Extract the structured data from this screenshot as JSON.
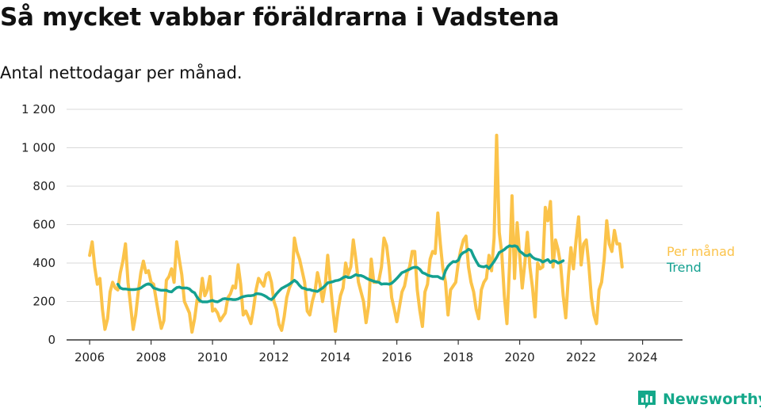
{
  "header": {
    "title": "Så mycket vabbar föräldrarna i Vadstena",
    "subtitle": "Antal nettodagar per månad."
  },
  "branding": {
    "name": "Newsworthy",
    "logo_icon": "bar-chart-speech-bubble-icon",
    "color": "#14a88a"
  },
  "chart_data": {
    "type": "line",
    "title": "Så mycket vabbar föräldrarna i Vadstena",
    "subtitle": "Antal nettodagar per månad.",
    "xlabel": "",
    "ylabel": "",
    "xlim": [
      2005.25,
      2025.3
    ],
    "ylim": [
      0,
      1200
    ],
    "x_ticks": [
      2006,
      2008,
      2010,
      2012,
      2014,
      2016,
      2018,
      2020,
      2022,
      2024
    ],
    "y_ticks": [
      0,
      200,
      400,
      600,
      800,
      1000,
      1200
    ],
    "y_tick_labels": [
      "0",
      "200",
      "400",
      "600",
      "800",
      "1 000",
      "1 200"
    ],
    "x_tick_labels": [
      "2006",
      "2008",
      "2010",
      "2012",
      "2014",
      "2016",
      "2018",
      "2020",
      "2022",
      "2024"
    ],
    "grid": "horizontal",
    "legend": "direct labels at right end of lines",
    "colors": {
      "per_month": "#fbc34a",
      "trend": "#14a090",
      "grid": "#d9d9d9",
      "axis": "#333333"
    },
    "series": [
      {
        "name": "Per månad",
        "x_start": 2006.0,
        "step_years": 0.0833333,
        "values": [
          440,
          510,
          380,
          290,
          320,
          160,
          55,
          110,
          250,
          300,
          270,
          260,
          350,
          410,
          500,
          300,
          180,
          55,
          130,
          250,
          350,
          410,
          350,
          360,
          300,
          290,
          210,
          130,
          60,
          100,
          310,
          330,
          370,
          300,
          510,
          420,
          340,
          200,
          170,
          140,
          40,
          110,
          210,
          200,
          320,
          230,
          260,
          330,
          150,
          160,
          140,
          100,
          120,
          140,
          220,
          240,
          280,
          270,
          390,
          290,
          130,
          150,
          120,
          85,
          160,
          260,
          320,
          300,
          280,
          340,
          350,
          300,
          200,
          160,
          80,
          50,
          120,
          220,
          270,
          300,
          530,
          460,
          420,
          360,
          300,
          150,
          130,
          200,
          250,
          350,
          290,
          200,
          280,
          440,
          300,
          160,
          45,
          150,
          230,
          270,
          400,
          340,
          380,
          520,
          420,
          300,
          250,
          200,
          90,
          180,
          420,
          300,
          300,
          310,
          380,
          530,
          490,
          380,
          220,
          160,
          95,
          170,
          250,
          280,
          350,
          380,
          460,
          460,
          260,
          150,
          70,
          250,
          290,
          420,
          460,
          450,
          660,
          500,
          370,
          300,
          130,
          260,
          280,
          300,
          400,
          470,
          520,
          540,
          380,
          300,
          250,
          160,
          110,
          260,
          300,
          320,
          440,
          360,
          530,
          1065,
          560,
          450,
          230,
          85,
          380,
          750,
          320,
          610,
          440,
          270,
          400,
          560,
          380,
          270,
          120,
          400,
          370,
          380,
          690,
          620,
          720,
          380,
          520,
          470,
          390,
          230,
          115,
          330,
          480,
          370,
          520,
          640,
          390,
          500,
          520,
          390,
          220,
          130,
          85,
          260,
          300,
          420,
          620,
          500,
          460,
          570,
          500,
          500,
          380
        ]
      },
      {
        "name": "Trend",
        "x_start": 2006.917,
        "step_years": 0.0833333,
        "values": [
          290,
          270,
          265,
          265,
          263,
          262,
          262,
          263,
          265,
          270,
          280,
          288,
          292,
          286,
          270,
          266,
          261,
          258,
          258,
          258,
          252,
          250,
          262,
          272,
          275,
          270,
          270,
          270,
          265,
          252,
          245,
          222,
          205,
          198,
          198,
          198,
          202,
          205,
          200,
          198,
          205,
          213,
          215,
          212,
          212,
          210,
          210,
          213,
          220,
          225,
          228,
          230,
          230,
          232,
          240,
          240,
          238,
          232,
          225,
          215,
          210,
          222,
          240,
          255,
          268,
          275,
          282,
          290,
          300,
          310,
          300,
          283,
          270,
          268,
          262,
          262,
          257,
          255,
          252,
          262,
          270,
          283,
          297,
          300,
          303,
          308,
          310,
          315,
          324,
          330,
          325,
          325,
          332,
          340,
          335,
          335,
          330,
          322,
          315,
          310,
          305,
          302,
          300,
          290,
          292,
          292,
          290,
          295,
          307,
          320,
          335,
          350,
          355,
          362,
          368,
          375,
          378,
          377,
          367,
          350,
          345,
          337,
          333,
          330,
          330,
          330,
          322,
          318,
          360,
          383,
          397,
          408,
          406,
          415,
          443,
          455,
          460,
          472,
          465,
          435,
          410,
          387,
          382,
          380,
          385,
          372,
          390,
          408,
          430,
          455,
          462,
          470,
          482,
          490,
          487,
          490,
          485,
          462,
          452,
          440,
          438,
          445,
          430,
          422,
          418,
          415,
          405,
          412,
          418,
          403,
          412,
          410,
          400,
          405,
          412
        ]
      }
    ]
  }
}
